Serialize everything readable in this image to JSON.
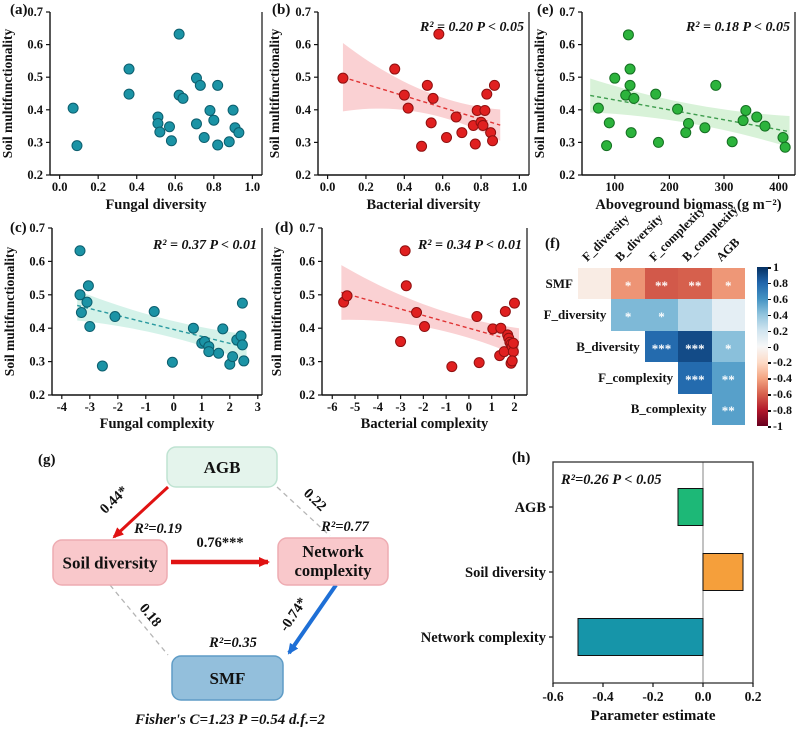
{
  "figure_caption": "",
  "chart_data": [
    {
      "id": "a",
      "type": "scatter",
      "panel_label": "(a)",
      "xlabel": "Fungal diversity",
      "ylabel": "Soil multifunctionality",
      "xlim": [
        -0.05,
        1.05
      ],
      "ylim": [
        0.2,
        0.7
      ],
      "xticks": [
        0.0,
        0.2,
        0.4,
        0.6,
        0.8,
        1.0
      ],
      "xtick_labels": [
        "0.0",
        "0.2",
        "0.4",
        "0.6",
        "0.8",
        "1.0"
      ],
      "yticks": [
        0.2,
        0.3,
        0.4,
        0.5,
        0.6,
        0.7
      ],
      "ytick_labels": [
        "0.2",
        "0.3",
        "0.4",
        "0.5",
        "0.6",
        "0.7"
      ],
      "stats": "",
      "dot_fill": "#1b93a5",
      "dot_edge": "#0c5e6e",
      "regression": null,
      "points": [
        [
          0.07,
          0.405
        ],
        [
          0.09,
          0.29
        ],
        [
          0.36,
          0.525
        ],
        [
          0.36,
          0.448
        ],
        [
          0.51,
          0.378
        ],
        [
          0.51,
          0.358
        ],
        [
          0.52,
          0.332
        ],
        [
          0.57,
          0.348
        ],
        [
          0.58,
          0.305
        ],
        [
          0.62,
          0.632
        ],
        [
          0.62,
          0.445
        ],
        [
          0.64,
          0.435
        ],
        [
          0.71,
          0.497
        ],
        [
          0.73,
          0.475
        ],
        [
          0.71,
          0.357
        ],
        [
          0.75,
          0.315
        ],
        [
          0.78,
          0.398
        ],
        [
          0.8,
          0.368
        ],
        [
          0.82,
          0.292
        ],
        [
          0.82,
          0.475
        ],
        [
          0.88,
          0.302
        ],
        [
          0.9,
          0.399
        ],
        [
          0.91,
          0.345
        ],
        [
          0.93,
          0.33
        ]
      ]
    },
    {
      "id": "b",
      "type": "scatter",
      "panel_label": "(b)",
      "xlabel": "Bacterial diversity",
      "ylabel": "Soil multifunctionality",
      "xlim": [
        -0.05,
        1.05
      ],
      "ylim": [
        0.2,
        0.7
      ],
      "xticks": [
        0.0,
        0.2,
        0.4,
        0.6,
        0.8,
        1.0
      ],
      "xtick_labels": [
        "0.0",
        "0.2",
        "0.4",
        "0.6",
        "0.8",
        "1.0"
      ],
      "yticks": [
        0.2,
        0.3,
        0.4,
        0.5,
        0.6,
        0.7
      ],
      "ytick_labels": [
        "0.2",
        "0.3",
        "0.4",
        "0.5",
        "0.6",
        "0.7"
      ],
      "stats": "R² = 0.20 P < 0.05",
      "dot_fill": "#e02020",
      "dot_edge": "#8f1010",
      "regression": {
        "x1": 0.08,
        "y1": 0.5,
        "x2": 0.9,
        "y2": 0.353,
        "line_color": "#e03434",
        "band_color": "#f5999d",
        "band_opacity": 0.45,
        "band_w": [
          0.105,
          0.035,
          0.048
        ]
      },
      "points": [
        [
          0.08,
          0.497
        ],
        [
          0.35,
          0.525
        ],
        [
          0.4,
          0.445
        ],
        [
          0.42,
          0.405
        ],
        [
          0.49,
          0.288
        ],
        [
          0.52,
          0.475
        ],
        [
          0.54,
          0.36
        ],
        [
          0.55,
          0.435
        ],
        [
          0.58,
          0.632
        ],
        [
          0.62,
          0.315
        ],
        [
          0.67,
          0.378
        ],
        [
          0.7,
          0.33
        ],
        [
          0.76,
          0.352
        ],
        [
          0.77,
          0.295
        ],
        [
          0.78,
          0.398
        ],
        [
          0.8,
          0.362
        ],
        [
          0.81,
          0.352
        ],
        [
          0.82,
          0.398
        ],
        [
          0.83,
          0.448
        ],
        [
          0.85,
          0.33
        ],
        [
          0.86,
          0.305
        ],
        [
          0.87,
          0.475
        ]
      ]
    },
    {
      "id": "e",
      "type": "scatter",
      "panel_label": "(e)",
      "xlabel": "Aboveground biomass (g m⁻²)",
      "ylabel": "Soil multifunctionality",
      "xlim": [
        40,
        430
      ],
      "ylim": [
        0.2,
        0.7
      ],
      "xticks": [
        100,
        200,
        300,
        400
      ],
      "xtick_labels": [
        "100",
        "200",
        "300",
        "400"
      ],
      "yticks": [
        0.2,
        0.3,
        0.4,
        0.5,
        0.6,
        0.7
      ],
      "ytick_labels": [
        "0.2",
        "0.3",
        "0.4",
        "0.5",
        "0.6",
        "0.7"
      ],
      "stats": "R² = 0.18 P < 0.05",
      "dot_fill": "#2cb33c",
      "dot_edge": "#156f22",
      "regression": {
        "x1": 55,
        "y1": 0.444,
        "x2": 420,
        "y2": 0.333,
        "line_color": "#3f9d4e",
        "band_color": "#a8e3a8",
        "band_opacity": 0.45,
        "band_w": [
          0.052,
          0.03,
          0.048
        ]
      },
      "points": [
        [
          70,
          0.405
        ],
        [
          85,
          0.29
        ],
        [
          90,
          0.36
        ],
        [
          100,
          0.497
        ],
        [
          125,
          0.63
        ],
        [
          128,
          0.525
        ],
        [
          128,
          0.475
        ],
        [
          120,
          0.445
        ],
        [
          135,
          0.435
        ],
        [
          130,
          0.33
        ],
        [
          175,
          0.448
        ],
        [
          180,
          0.3
        ],
        [
          215,
          0.402
        ],
        [
          235,
          0.358
        ],
        [
          230,
          0.33
        ],
        [
          265,
          0.345
        ],
        [
          285,
          0.475
        ],
        [
          315,
          0.302
        ],
        [
          335,
          0.367
        ],
        [
          340,
          0.398
        ],
        [
          360,
          0.378
        ],
        [
          375,
          0.35
        ],
        [
          408,
          0.315
        ],
        [
          412,
          0.285
        ]
      ]
    },
    {
      "id": "c",
      "type": "scatter",
      "panel_label": "(c)",
      "xlabel": "Fungal complexity",
      "ylabel": "Soil multifunctionality",
      "xlim": [
        -4.35,
        3.15
      ],
      "ylim": [
        0.2,
        0.7
      ],
      "xticks": [
        -4,
        -3,
        -2,
        -1,
        0,
        1,
        2,
        3
      ],
      "xtick_labels": [
        "-4",
        "-3",
        "-2",
        "-1",
        "0",
        "1",
        "2",
        "3"
      ],
      "yticks": [
        0.2,
        0.3,
        0.4,
        0.5,
        0.6,
        0.7
      ],
      "ytick_labels": [
        "0.2",
        "0.3",
        "0.4",
        "0.5",
        "0.6",
        "0.7"
      ],
      "stats": "R² = 0.37 P < 0.01",
      "dot_fill": "#1b93a5",
      "dot_edge": "#0c5e6e",
      "regression": {
        "x1": -3.45,
        "y1": 0.468,
        "x2": 2.6,
        "y2": 0.342,
        "line_color": "#2a9aa0",
        "band_color": "#9fe3cf",
        "band_opacity": 0.45,
        "band_w": [
          0.045,
          0.025,
          0.04
        ]
      },
      "points": [
        [
          -3.35,
          0.632
        ],
        [
          -3.35,
          0.5
        ],
        [
          -3.3,
          0.447
        ],
        [
          -3.1,
          0.478
        ],
        [
          -3.05,
          0.527
        ],
        [
          -3.0,
          0.405
        ],
        [
          -2.55,
          0.287
        ],
        [
          -2.1,
          0.435
        ],
        [
          -0.7,
          0.45
        ],
        [
          -0.05,
          0.298
        ],
        [
          0.7,
          0.4
        ],
        [
          1.0,
          0.355
        ],
        [
          1.1,
          0.36
        ],
        [
          1.25,
          0.345
        ],
        [
          1.25,
          0.33
        ],
        [
          1.6,
          0.325
        ],
        [
          1.75,
          0.398
        ],
        [
          2.0,
          0.292
        ],
        [
          2.1,
          0.315
        ],
        [
          2.25,
          0.365
        ],
        [
          2.4,
          0.377
        ],
        [
          2.45,
          0.475
        ],
        [
          2.45,
          0.35
        ],
        [
          2.5,
          0.302
        ]
      ]
    },
    {
      "id": "d",
      "type": "scatter",
      "panel_label": "(d)",
      "xlabel": "Bacterial complexity",
      "ylabel": "Soil multifunctionality",
      "xlim": [
        -6.45,
        2.55
      ],
      "ylim": [
        0.2,
        0.7
      ],
      "xticks": [
        -6,
        -5,
        -4,
        -3,
        -2,
        -1,
        0,
        1,
        2
      ],
      "xtick_labels": [
        "-6",
        "-5",
        "-4",
        "-3",
        "-2",
        "-1",
        "0",
        "1",
        "2"
      ],
      "yticks": [
        0.2,
        0.3,
        0.4,
        0.5,
        0.6,
        0.7
      ],
      "ytick_labels": [
        "0.2",
        "0.3",
        "0.4",
        "0.5",
        "0.6",
        "0.7"
      ],
      "stats": "R² = 0.34 P < 0.01",
      "dot_fill": "#e02020",
      "dot_edge": "#8f1010",
      "regression": {
        "x1": -5.6,
        "y1": 0.507,
        "x2": 2.2,
        "y2": 0.358,
        "line_color": "#e03434",
        "band_color": "#f5999d",
        "band_opacity": 0.45,
        "band_w": [
          0.082,
          0.032,
          0.042
        ]
      },
      "points": [
        [
          -5.5,
          0.478
        ],
        [
          -5.35,
          0.497
        ],
        [
          -3.0,
          0.36
        ],
        [
          -2.8,
          0.632
        ],
        [
          -2.75,
          0.527
        ],
        [
          -2.3,
          0.447
        ],
        [
          -1.95,
          0.405
        ],
        [
          -0.75,
          0.285
        ],
        [
          0.35,
          0.435
        ],
        [
          0.45,
          0.297
        ],
        [
          1.05,
          0.398
        ],
        [
          1.4,
          0.4
        ],
        [
          1.35,
          0.318
        ],
        [
          1.55,
          0.33
        ],
        [
          1.6,
          0.45
        ],
        [
          1.7,
          0.38
        ],
        [
          1.75,
          0.37
        ],
        [
          1.8,
          0.358
        ],
        [
          1.85,
          0.352
        ],
        [
          1.9,
          0.345
        ],
        [
          1.85,
          0.295
        ],
        [
          1.95,
          0.33
        ],
        [
          1.9,
          0.302
        ],
        [
          2.0,
          0.475
        ],
        [
          1.95,
          0.355
        ]
      ]
    },
    {
      "id": "f",
      "type": "heatmap",
      "panel_label": "(f)",
      "col_labels": [
        "F_diversity",
        "B_diversity",
        "F_complexity",
        "B_complexity",
        "AGB"
      ],
      "row_labels": [
        "SMF",
        "F_diversity",
        "B_diversity",
        "F_complexity",
        "B_complexity"
      ],
      "rows": [
        {
          "label": "SMF",
          "start_col": 0,
          "values": [
            -0.08,
            -0.45,
            -0.62,
            -0.6,
            -0.44
          ],
          "stars": [
            "",
            "*",
            "**",
            "**",
            "*"
          ]
        },
        {
          "label": "F_diversity",
          "start_col": 1,
          "values": [
            0.45,
            0.45,
            0.28,
            0.1
          ],
          "stars": [
            "*",
            "*",
            "",
            ""
          ]
        },
        {
          "label": "B_diversity",
          "start_col": 2,
          "values": [
            0.78,
            0.9,
            0.42
          ],
          "stars": [
            "***",
            "***",
            "*"
          ]
        },
        {
          "label": "F_complexity",
          "start_col": 3,
          "values": [
            0.78,
            0.55
          ],
          "stars": [
            "***",
            "**"
          ]
        },
        {
          "label": "B_complexity",
          "start_col": 4,
          "values": [
            0.55
          ],
          "stars": [
            "**"
          ]
        }
      ],
      "colorbar_ticks": [
        "1",
        "0.8",
        "0.6",
        "0.4",
        "0.2",
        "0",
        "-0.2",
        "-0.4",
        "-0.6",
        "-0.8",
        "-1"
      ],
      "colorbar_range": [
        1,
        -1
      ]
    },
    {
      "id": "h",
      "type": "bar",
      "panel_label": "(h)",
      "stats": "R²=0.26 P < 0.05",
      "categories": [
        "AGB",
        "Soil diversity",
        "Network complexity"
      ],
      "values": [
        -0.1,
        0.16,
        -0.5
      ],
      "colors": [
        "#1db877",
        "#f59f3b",
        "#1695a9"
      ],
      "xlabel": "Parameter estimate",
      "xlim": [
        -0.6,
        0.2
      ],
      "xticks": [
        -0.6,
        -0.4,
        -0.2,
        0.0,
        0.2
      ],
      "xtick_labels": [
        "-0.6",
        "-0.4",
        "-0.2",
        "0.0",
        "0.2"
      ]
    }
  ],
  "sem": {
    "panel_label": "(g)",
    "nodes": [
      {
        "id": "agb",
        "label": "AGB",
        "r2": "",
        "fill": "#e4f4ec",
        "border": "#bfe3d2"
      },
      {
        "id": "soil",
        "label": "Soil diversity",
        "r2": "R²=0.19",
        "fill": "#f9c8cb",
        "border": "#eeacb2"
      },
      {
        "id": "net",
        "label": "Network complexity",
        "label_lines": [
          "Network",
          "complexity"
        ],
        "r2": "R²=0.77",
        "fill": "#f9c8cb",
        "border": "#eeacb2"
      },
      {
        "id": "smf",
        "label": "SMF",
        "r2": "R²=0.35",
        "fill": "#93bfdc",
        "border": "#5f9cc6"
      }
    ],
    "edges": [
      {
        "from": "agb",
        "to": "soil",
        "label": "0.44*",
        "style": "solid",
        "color": "#e01212",
        "width": 3,
        "arrow": true
      },
      {
        "from": "agb",
        "to": "net",
        "label": "0.22",
        "style": "dashed",
        "color": "#b5b5b5",
        "width": 1.3,
        "arrow": false
      },
      {
        "from": "soil",
        "to": "net",
        "label": "0.76***",
        "style": "solid",
        "color": "#e01212",
        "width": 4.5,
        "arrow": true
      },
      {
        "from": "soil",
        "to": "smf",
        "label": "0.18",
        "style": "dashed",
        "color": "#b5b5b5",
        "width": 1.3,
        "arrow": false
      },
      {
        "from": "net",
        "to": "smf",
        "label": "-0.74*",
        "style": "solid",
        "color": "#1e6fd6",
        "width": 4,
        "arrow": true
      }
    ],
    "fisher_text": "Fisher's C=1.23 P =0.54 d.f.=2"
  }
}
